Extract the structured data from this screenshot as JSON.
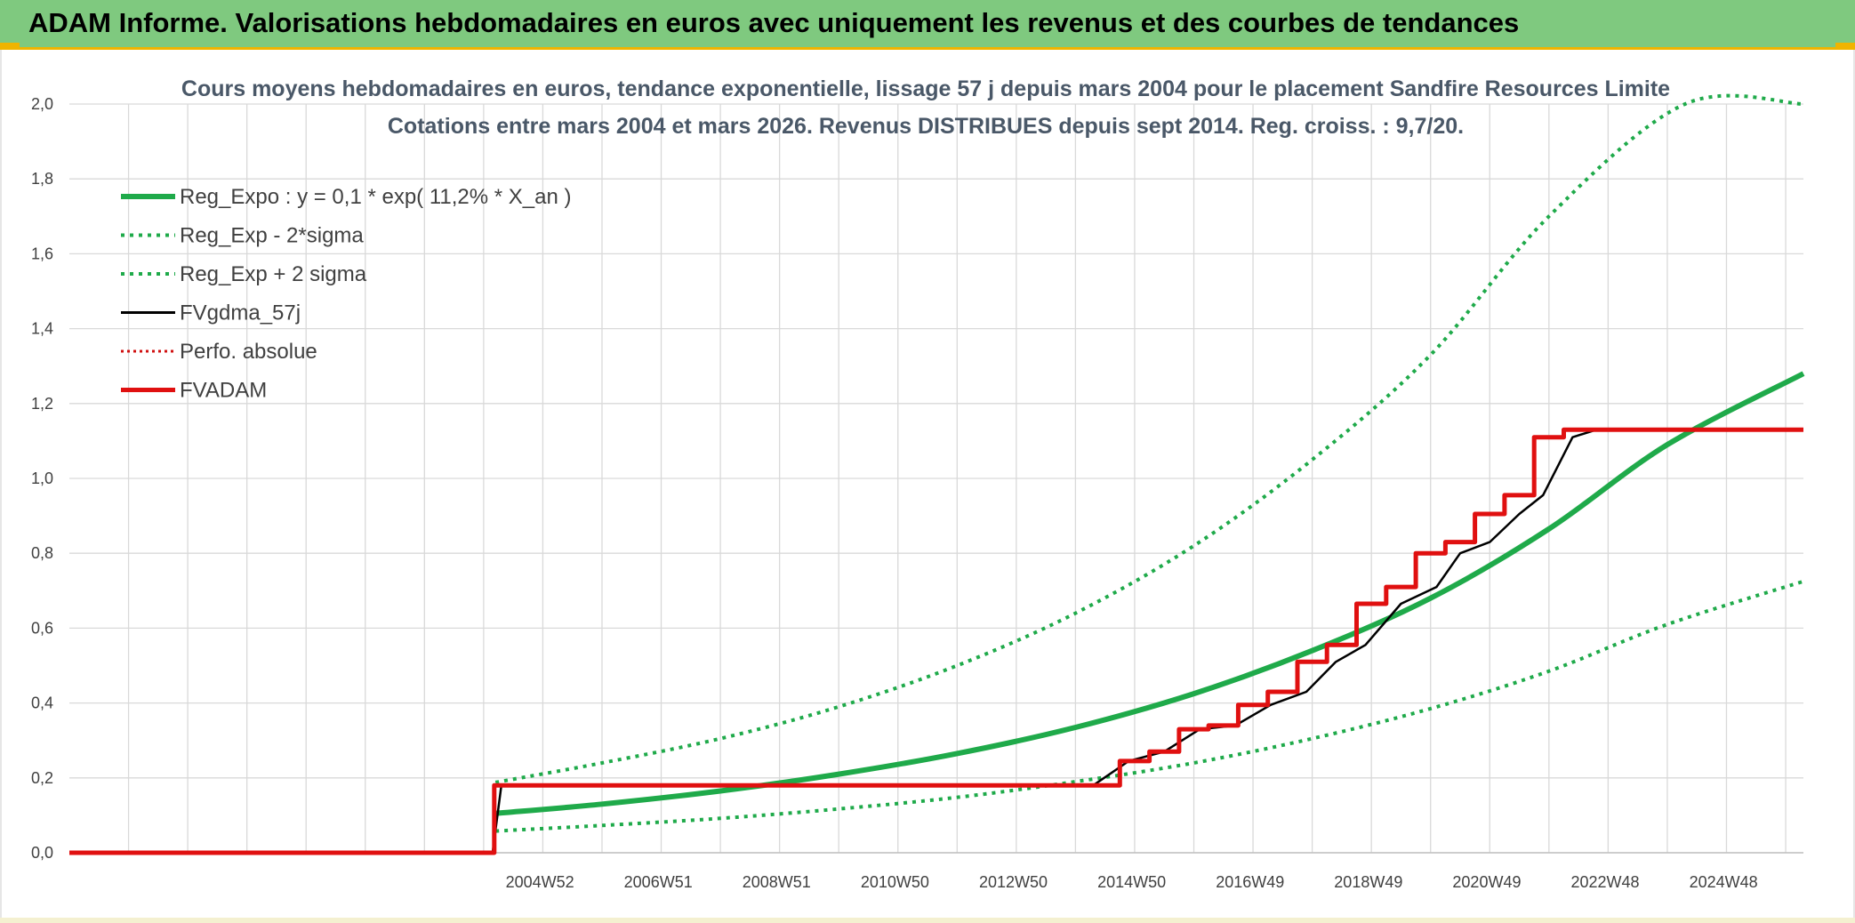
{
  "header": {
    "title": "ADAM Informe. Valorisations hebdomadaires en euros avec uniquement les revenus et des courbes de tendances"
  },
  "chart_data": {
    "type": "line",
    "title_lines": [
      "Cours moyens hebdomadaires en euros, tendance exponentielle, lissage 57 j depuis mars 2004 pour le placement Sandfire Resources Limite",
      "Cotations entre mars 2004 et mars 2026. Revenus DISTRIBUES depuis sept 2014. Reg. croiss. : 9,7/20."
    ],
    "xlabel": "",
    "ylabel": "",
    "x_range": [
      1997.0,
      2026.3
    ],
    "ylim": [
      0,
      2.0
    ],
    "y_ticks": [
      "0,0",
      "0,2",
      "0,4",
      "0,6",
      "0,8",
      "1,0",
      "1,2",
      "1,4",
      "1,6",
      "1,8",
      "2,0"
    ],
    "y_tick_values": [
      0,
      0.2,
      0.4,
      0.6,
      0.8,
      1.0,
      1.2,
      1.4,
      1.6,
      1.8,
      2.0
    ],
    "x_ticks": [
      {
        "label": "2004W52",
        "x": 2004.95
      },
      {
        "label": "2006W51",
        "x": 2006.95
      },
      {
        "label": "2008W51",
        "x": 2008.95
      },
      {
        "label": "2010W50",
        "x": 2010.95
      },
      {
        "label": "2012W50",
        "x": 2012.95
      },
      {
        "label": "2014W50",
        "x": 2014.95
      },
      {
        "label": "2016W49",
        "x": 2016.95
      },
      {
        "label": "2018W49",
        "x": 2018.95
      },
      {
        "label": "2020W49",
        "x": 2020.95
      },
      {
        "label": "2022W48",
        "x": 2022.95
      },
      {
        "label": "2024W48",
        "x": 2024.95
      }
    ],
    "grid": true,
    "legend_position": "top-left",
    "colors": {
      "reg_expo": "#1faa4a",
      "sigma": "#1faa4a",
      "fvgdma": "#000000",
      "perfo": "#d01010",
      "fvadam": "#e01010",
      "grid": "#d9d9d9"
    },
    "series": [
      {
        "name": "Reg_Expo : y = 0,1 * exp( 11,2% *  X_an )",
        "style": "solid-thick",
        "points": [
          [
            2004.2,
            0.105
          ],
          [
            2006,
            0.13
          ],
          [
            2008,
            0.165
          ],
          [
            2010,
            0.21
          ],
          [
            2012,
            0.265
          ],
          [
            2014,
            0.335
          ],
          [
            2016,
            0.425
          ],
          [
            2018,
            0.54
          ],
          [
            2020,
            0.68
          ],
          [
            2022,
            0.865
          ],
          [
            2024,
            1.09
          ],
          [
            2026.3,
            1.28
          ]
        ]
      },
      {
        "name": "Reg_Exp - 2*sigma",
        "style": "dotted",
        "points": [
          [
            2004.2,
            0.058
          ],
          [
            2006,
            0.073
          ],
          [
            2008,
            0.092
          ],
          [
            2010,
            0.117
          ],
          [
            2012,
            0.148
          ],
          [
            2014,
            0.19
          ],
          [
            2016,
            0.24
          ],
          [
            2018,
            0.305
          ],
          [
            2020,
            0.385
          ],
          [
            2022,
            0.485
          ],
          [
            2024,
            0.61
          ],
          [
            2026.3,
            0.725
          ]
        ]
      },
      {
        "name": "Reg_Exp + 2 sigma",
        "style": "dotted",
        "points": [
          [
            2004.2,
            0.188
          ],
          [
            2006,
            0.24
          ],
          [
            2008,
            0.305
          ],
          [
            2010,
            0.39
          ],
          [
            2012,
            0.5
          ],
          [
            2014,
            0.64
          ],
          [
            2016,
            0.82
          ],
          [
            2018,
            1.05
          ],
          [
            2020,
            1.33
          ],
          [
            2022,
            1.7
          ],
          [
            2024.3,
            2.0
          ],
          [
            2026.3,
            2.0
          ]
        ]
      },
      {
        "name": "FVgdma_57j",
        "style": "solid-thin",
        "points": [
          [
            1997,
            0
          ],
          [
            2004.15,
            0
          ],
          [
            2004.3,
            0.18
          ],
          [
            2014.3,
            0.18
          ],
          [
            2014.9,
            0.245
          ],
          [
            2015.5,
            0.27
          ],
          [
            2016.1,
            0.33
          ],
          [
            2016.7,
            0.34
          ],
          [
            2017.3,
            0.395
          ],
          [
            2017.9,
            0.43
          ],
          [
            2018.4,
            0.51
          ],
          [
            2018.9,
            0.555
          ],
          [
            2019.5,
            0.665
          ],
          [
            2020.1,
            0.71
          ],
          [
            2020.5,
            0.8
          ],
          [
            2021.0,
            0.83
          ],
          [
            2021.5,
            0.905
          ],
          [
            2021.9,
            0.955
          ],
          [
            2022.4,
            1.11
          ],
          [
            2022.8,
            1.13
          ],
          [
            2026.3,
            1.13
          ]
        ]
      },
      {
        "name": "Perfo. absolue",
        "style": "dotted-thin",
        "points": []
      },
      {
        "name": "FVADAM",
        "style": "step-thick",
        "points": [
          [
            1997,
            0
          ],
          [
            2004.18,
            0
          ],
          [
            2004.18,
            0.18
          ],
          [
            2014.75,
            0.18
          ],
          [
            2014.75,
            0.245
          ],
          [
            2015.25,
            0.245
          ],
          [
            2015.25,
            0.27
          ],
          [
            2015.75,
            0.27
          ],
          [
            2015.75,
            0.33
          ],
          [
            2016.25,
            0.33
          ],
          [
            2016.25,
            0.34
          ],
          [
            2016.75,
            0.34
          ],
          [
            2016.75,
            0.395
          ],
          [
            2017.25,
            0.395
          ],
          [
            2017.25,
            0.43
          ],
          [
            2017.75,
            0.43
          ],
          [
            2017.75,
            0.51
          ],
          [
            2018.25,
            0.51
          ],
          [
            2018.25,
            0.555
          ],
          [
            2018.75,
            0.555
          ],
          [
            2018.75,
            0.665
          ],
          [
            2019.25,
            0.665
          ],
          [
            2019.25,
            0.71
          ],
          [
            2019.75,
            0.71
          ],
          [
            2019.75,
            0.8
          ],
          [
            2020.25,
            0.8
          ],
          [
            2020.25,
            0.83
          ],
          [
            2020.75,
            0.83
          ],
          [
            2020.75,
            0.905
          ],
          [
            2021.25,
            0.905
          ],
          [
            2021.25,
            0.955
          ],
          [
            2021.75,
            0.955
          ],
          [
            2021.75,
            1.11
          ],
          [
            2022.25,
            1.11
          ],
          [
            2022.25,
            1.13
          ],
          [
            2026.3,
            1.13
          ]
        ]
      }
    ]
  }
}
